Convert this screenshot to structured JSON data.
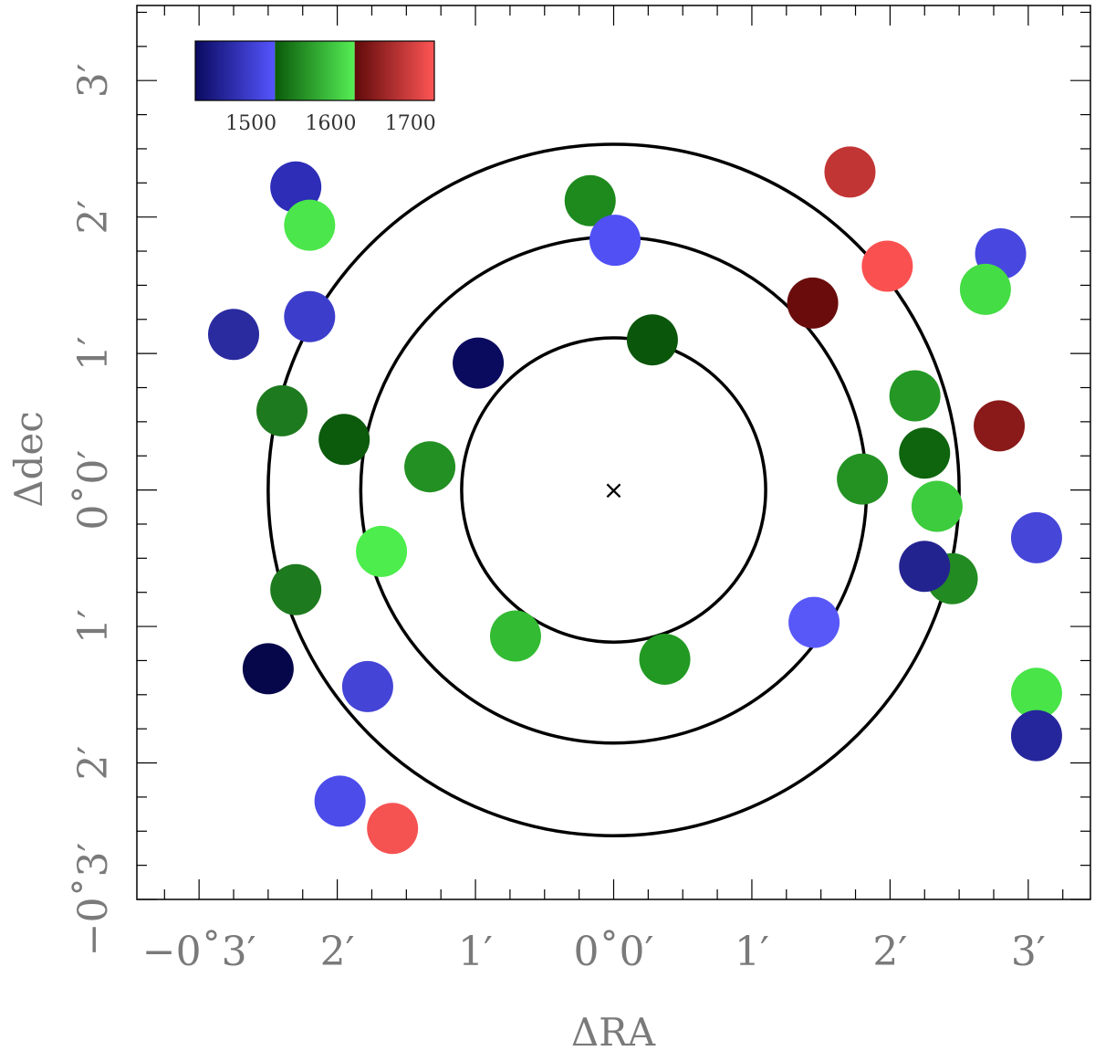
{
  "chart_data": {
    "type": "scatter",
    "xlabel": "ΔRA",
    "ylabel": "Δdec",
    "xlim": [
      -3.45,
      3.45
    ],
    "ylim": [
      -3.0,
      3.55
    ],
    "x_ticks": [
      {
        "value": -3,
        "label": "−0˚3′"
      },
      {
        "value": -2,
        "label": "2′"
      },
      {
        "value": -1,
        "label": "1′"
      },
      {
        "value": 0,
        "label": "0˚0′"
      },
      {
        "value": 1,
        "label": "1′"
      },
      {
        "value": 2,
        "label": "2′"
      },
      {
        "value": 3,
        "label": "3′"
      }
    ],
    "y_ticks": [
      {
        "value": -3,
        "label": "−0˚3′"
      },
      {
        "value": -2,
        "label": "2′"
      },
      {
        "value": -1,
        "label": "1′"
      },
      {
        "value": 0,
        "label": "0˚0′"
      },
      {
        "value": 1,
        "label": "1′"
      },
      {
        "value": 2,
        "label": "2′"
      },
      {
        "value": 3,
        "label": "3′"
      }
    ],
    "center_marker": {
      "x": 0,
      "y": 0,
      "symbol": "×"
    },
    "circles_radius": [
      1.1,
      1.83,
      2.5
    ],
    "colorbar": {
      "range": [
        1430,
        1730
      ],
      "tick_labels": [
        "1500",
        "1600",
        "1700"
      ],
      "segments": [
        {
          "from": 1430,
          "to": 1530,
          "start_color": "#0a0a60",
          "end_color": "#5555ff"
        },
        {
          "from": 1530,
          "to": 1630,
          "start_color": "#0a5a0a",
          "end_color": "#55ee55"
        },
        {
          "from": 1630,
          "to": 1730,
          "start_color": "#600a0a",
          "end_color": "#ff5555"
        }
      ]
    },
    "points": [
      {
        "x": -2.3,
        "y": 2.22,
        "color": "#2d2db8"
      },
      {
        "x": -2.2,
        "y": 1.94,
        "color": "#4be64b"
      },
      {
        "x": -2.2,
        "y": 1.27,
        "color": "#3d3dcc"
      },
      {
        "x": -2.75,
        "y": 1.14,
        "color": "#2b2ba0"
      },
      {
        "x": -2.4,
        "y": 0.58,
        "color": "#1e7a1e"
      },
      {
        "x": -1.95,
        "y": 0.37,
        "color": "#0c5a0c"
      },
      {
        "x": -1.33,
        "y": 0.17,
        "color": "#229022"
      },
      {
        "x": -0.98,
        "y": 0.93,
        "color": "#0a0a5e"
      },
      {
        "x": -0.17,
        "y": 2.12,
        "color": "#1e8a1e"
      },
      {
        "x": 0.01,
        "y": 1.83,
        "color": "#5050f5"
      },
      {
        "x": 0.28,
        "y": 1.1,
        "color": "#0a560a"
      },
      {
        "x": -1.68,
        "y": -0.45,
        "color": "#4ced4c"
      },
      {
        "x": -2.3,
        "y": -0.73,
        "color": "#1e7a1e"
      },
      {
        "x": -2.5,
        "y": -1.31,
        "color": "#06064a"
      },
      {
        "x": -1.78,
        "y": -1.44,
        "color": "#4444d6"
      },
      {
        "x": -0.71,
        "y": -1.07,
        "color": "#33bb33"
      },
      {
        "x": 0.37,
        "y": -1.24,
        "color": "#229922"
      },
      {
        "x": -1.98,
        "y": -2.28,
        "color": "#4c4cea"
      },
      {
        "x": -1.6,
        "y": -2.48,
        "color": "#f55252"
      },
      {
        "x": 1.44,
        "y": 1.37,
        "color": "#6a0c0c"
      },
      {
        "x": 1.71,
        "y": 2.33,
        "color": "#c23535"
      },
      {
        "x": 1.98,
        "y": 1.64,
        "color": "#fa5050"
      },
      {
        "x": 2.18,
        "y": 0.69,
        "color": "#249724"
      },
      {
        "x": 2.25,
        "y": 0.27,
        "color": "#0e650e"
      },
      {
        "x": 1.8,
        "y": 0.08,
        "color": "#239223"
      },
      {
        "x": 2.34,
        "y": -0.12,
        "color": "#3dcc3d"
      },
      {
        "x": 2.45,
        "y": -0.65,
        "color": "#228b22"
      },
      {
        "x": 2.25,
        "y": -0.56,
        "color": "#232390"
      },
      {
        "x": 1.45,
        "y": -0.97,
        "color": "#5858f8"
      },
      {
        "x": 2.8,
        "y": 1.73,
        "color": "#4848e0"
      },
      {
        "x": 2.69,
        "y": 1.47,
        "color": "#45dd45"
      },
      {
        "x": 2.79,
        "y": 0.47,
        "color": "#8a1a1a"
      },
      {
        "x": 3.06,
        "y": -0.35,
        "color": "#4646d8"
      },
      {
        "x": 3.06,
        "y": -1.49,
        "color": "#48e448"
      },
      {
        "x": 3.06,
        "y": -1.8,
        "color": "#26269c"
      }
    ]
  }
}
